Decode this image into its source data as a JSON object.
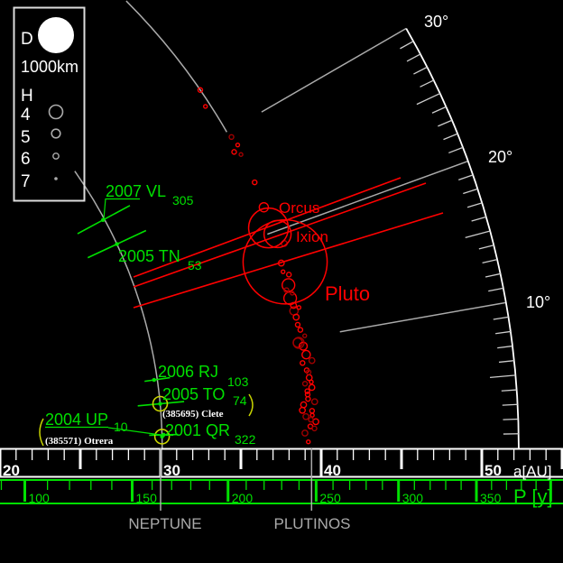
{
  "legend": {
    "d_label": "D",
    "d_scale": "1000km",
    "h_label": "H",
    "h_values": [
      "4",
      "5",
      "6",
      "7"
    ]
  },
  "inclination_scale": {
    "labels": [
      "30°",
      "20°",
      "10°"
    ],
    "max_deg": 30,
    "minor_step_deg": 1
  },
  "a_axis": {
    "label": "a[AU]",
    "ticks": [
      "20",
      "30",
      "40",
      "50"
    ],
    "range": [
      20,
      55
    ]
  },
  "p_axis": {
    "label": "P [y]",
    "ticks": [
      "100",
      "150",
      "200",
      "250",
      "300",
      "350"
    ]
  },
  "markers": {
    "neptune": {
      "label": "NEPTUNE",
      "a": 30.1
    },
    "plutinos": {
      "label": "PLUTINOS",
      "a": 39.4
    }
  },
  "colors": {
    "plutino": "#ff0000",
    "plutino_dim": "#a00000",
    "trojan": "#00e000",
    "highlight": "#c8d400",
    "axis": "#ffffff",
    "guide": "#aaaaaa"
  },
  "named_plutinos": [
    {
      "name": "Pluto",
      "a": 39.5,
      "i": 17.1,
      "D_km": 2330
    },
    {
      "name": "Orcus",
      "a": 39.2,
      "i": 20.5,
      "D_km": 1100
    },
    {
      "name": "Ixion",
      "a": 39.6,
      "i": 19.7,
      "D_km": 750
    }
  ],
  "plutinos": [
    [
      39.4,
      34.5,
      6.5
    ],
    [
      39.1,
      33.0,
      7
    ],
    [
      39.5,
      29.4,
      6.5
    ],
    [
      39.6,
      28.5,
      7
    ],
    [
      39.2,
      28.1,
      6.5
    ],
    [
      39.5,
      27.6,
      7
    ],
    [
      39.5,
      24.8,
      6.5
    ],
    [
      39.4,
      22.4,
      5
    ],
    [
      39.8,
      18.7,
      6
    ],
    [
      39.3,
      15.0,
      4.3
    ],
    [
      39.2,
      13.8,
      4.3
    ],
    [
      39.25,
      12.6,
      5.2
    ],
    [
      39.3,
      12.0,
      6
    ],
    [
      39.25,
      17.1,
      6
    ],
    [
      39.1,
      9.7,
      5
    ],
    [
      39.5,
      8.5,
      5.2
    ],
    [
      39.5,
      15.9,
      6.5
    ],
    [
      39.1,
      14.6,
      6.5
    ],
    [
      39.3,
      13.1,
      6
    ],
    [
      39.4,
      10.8,
      6.5
    ],
    [
      39.6,
      10.2,
      7
    ],
    [
      39.4,
      7.1,
      6.5
    ],
    [
      39.5,
      6.4,
      6
    ],
    [
      39.2,
      5.9,
      6.5
    ],
    [
      39.6,
      5.5,
      6
    ],
    [
      39.3,
      4.9,
      6.5
    ],
    [
      39.7,
      4.2,
      6
    ],
    [
      39.0,
      4.0,
      6
    ],
    [
      39.5,
      3.4,
      6.5
    ],
    [
      39.1,
      2.9,
      6
    ],
    [
      39.7,
      2.4,
      6
    ],
    [
      39.35,
      2.0,
      6.5
    ],
    [
      39.0,
      1.4,
      6
    ],
    [
      39.2,
      0.6,
      7
    ],
    [
      39.2,
      7.8,
      6.5
    ],
    [
      39.8,
      7.9,
      6
    ],
    [
      39.3,
      4.5,
      6.5
    ],
    [
      38.9,
      3.5,
      6
    ],
    [
      39.6,
      1.8,
      6.5
    ],
    [
      39.3,
      11.3,
      6.5
    ],
    [
      39.4,
      9.3,
      5.3
    ],
    [
      39.5,
      6.9,
      6.5
    ],
    [
      39.3,
      5.2,
      6.5
    ],
    [
      39.5,
      3.0,
      7
    ],
    [
      39.4,
      2.6,
      6.5
    ],
    [
      39.6,
      6.0,
      7
    ],
    [
      39.2,
      16.3,
      7
    ],
    [
      39.4,
      14.2,
      7
    ],
    [
      39.6,
      12.8,
      7
    ]
  ],
  "trojans": [
    {
      "name": "2007 VL",
      "sub": "305",
      "a": 30.0,
      "i": 28.3,
      "a_range": [
        28.2,
        31.9
      ]
    },
    {
      "name": "2005 TN",
      "sub": "53",
      "a": 30.1,
      "i": 25.0,
      "a_range": [
        28.1,
        32.1
      ]
    },
    {
      "name": "2006 RJ",
      "sub": "103",
      "a": 29.9,
      "i": 8.2,
      "a_range": [
        29.3,
        30.9
      ]
    },
    {
      "name": "2005 TO",
      "sub": "74",
      "a": 30.1,
      "i": 5.3,
      "a_range": [
        28.7,
        31.6
      ],
      "alias": "(385695) Clete"
    },
    {
      "name": "2001 QR",
      "sub": "322",
      "a": 30.2,
      "i": 1.6,
      "a_range": [
        29.3,
        31.1
      ]
    },
    {
      "name": "2004 UP",
      "sub": "10",
      "a": 30.1,
      "i": 1.4,
      "alias": "(385571) Otrera"
    }
  ]
}
